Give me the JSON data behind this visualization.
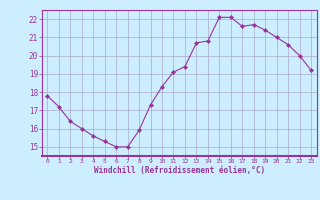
{
  "x": [
    0,
    1,
    2,
    3,
    4,
    5,
    6,
    7,
    8,
    9,
    10,
    11,
    12,
    13,
    14,
    15,
    16,
    17,
    18,
    19,
    20,
    21,
    22,
    23
  ],
  "y": [
    17.8,
    17.2,
    16.4,
    16.0,
    15.6,
    15.3,
    15.0,
    15.0,
    15.9,
    17.3,
    18.3,
    19.1,
    19.4,
    20.7,
    20.8,
    22.1,
    22.1,
    21.6,
    21.7,
    21.4,
    21.0,
    20.6,
    20.0,
    19.2
  ],
  "line_color": "#993399",
  "marker": "D",
  "marker_size": 2,
  "bg_color": "#cceeff",
  "grid_color": "#aaaacc",
  "xlabel": "Windchill (Refroidissement éolien,°C)",
  "xlabel_color": "#993399",
  "tick_color": "#993399",
  "axis_color": "#993399",
  "ylim": [
    14.5,
    22.5
  ],
  "xlim": [
    -0.5,
    23.5
  ],
  "yticks": [
    15,
    16,
    17,
    18,
    19,
    20,
    21,
    22
  ],
  "xticks": [
    0,
    1,
    2,
    3,
    4,
    5,
    6,
    7,
    8,
    9,
    10,
    11,
    12,
    13,
    14,
    15,
    16,
    17,
    18,
    19,
    20,
    21,
    22,
    23
  ],
  "figw": 3.2,
  "figh": 2.0,
  "dpi": 100
}
